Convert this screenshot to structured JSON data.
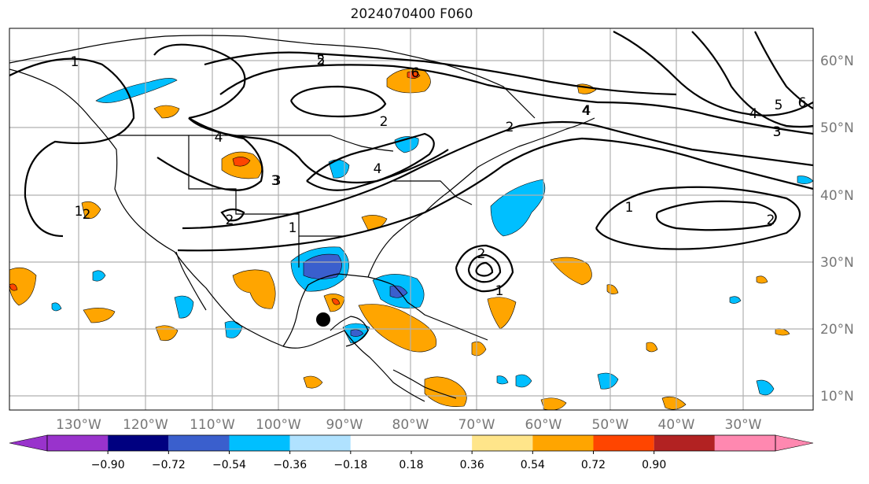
{
  "title": "2024070400 F060",
  "colors": {
    "anom": [
      "#9933cc",
      "#000080",
      "#3a5fcd",
      "#00bfff",
      "#b0e2ff",
      "#ffffff",
      "#ffffff",
      "#ffe58a",
      "#ffa500",
      "#ff4500",
      "#b22222",
      "#ff88b0"
    ],
    "coast": "#000000",
    "grid": "#b0b0b0",
    "contour": "#000000",
    "marker": "#000000"
  },
  "axes": {
    "lon_ticks": [
      "130°W",
      "120°W",
      "110°W",
      "100°W",
      "90°W",
      "80°W",
      "70°W",
      "60°W",
      "50°W",
      "40°W",
      "30°W"
    ],
    "lat_ticks": [
      "60°N",
      "50°N",
      "40°N",
      "30°N",
      "20°N",
      "10°N"
    ]
  },
  "contour_labels": [
    "1",
    "2",
    "3",
    "4",
    "5",
    "6",
    "4",
    "2",
    "3",
    "2",
    "1",
    "4",
    "3",
    "2",
    "2",
    "1",
    "2",
    "1",
    "4",
    "5",
    "6",
    "3",
    "4",
    "2",
    "1"
  ],
  "colorbar": {
    "ticks": [
      "−0.90",
      "−0.72",
      "−0.54",
      "−0.36",
      "−0.18",
      "0.18",
      "0.36",
      "0.54",
      "0.72",
      "0.90"
    ]
  },
  "marker": {
    "label": "storm-position-marker"
  }
}
